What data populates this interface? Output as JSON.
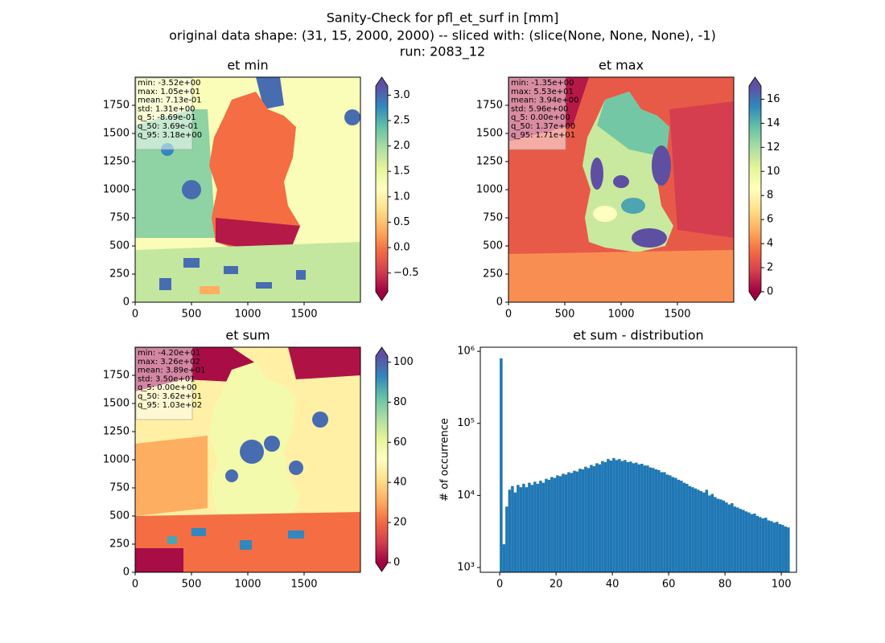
{
  "title": [
    "Sanity-Check for pfl_et_surf in [mm]",
    "original data shape: (31, 15, 2000, 2000) -- sliced with: (slice(None, None, None), -1)",
    "run: 2083_12"
  ],
  "chart_data": [
    {
      "type": "heatmap",
      "title": "et min",
      "cmap": "Spectral",
      "xlim": [
        0,
        2000
      ],
      "ylim": [
        0,
        2000
      ],
      "xticks": [
        0,
        500,
        1000,
        1500
      ],
      "yticks": [
        0,
        250,
        500,
        750,
        1000,
        1250,
        1500,
        1750
      ],
      "clim": [
        -0.869,
        3.18
      ],
      "cticks": [
        {
          "value": -0.5,
          "label": "−0.5"
        },
        {
          "value": 0,
          "label": "0.0"
        },
        {
          "value": 0.5,
          "label": "0.5"
        },
        {
          "value": 1,
          "label": "1.0"
        },
        {
          "value": 1.5,
          "label": "1.5"
        },
        {
          "value": 2,
          "label": "2.0"
        },
        {
          "value": 2.5,
          "label": "2.5"
        },
        {
          "value": 3,
          "label": "3.0"
        }
      ],
      "stats": [
        "min: -3.52e+00",
        "max: 1.05e+01",
        "mean: 7.13e-01",
        "std: 1.31e+00",
        "q_5: -8.69e-01",
        "q_50: 3.69e-01",
        "q_95: 3.18e+00"
      ]
    },
    {
      "type": "heatmap",
      "title": "et max",
      "cmap": "Spectral",
      "xlim": [
        0,
        2000
      ],
      "ylim": [
        0,
        2000
      ],
      "xticks": [
        0,
        500,
        1000,
        1500
      ],
      "yticks": [
        0,
        250,
        500,
        750,
        1000,
        1250,
        1500,
        1750
      ],
      "clim": [
        0,
        17.1
      ],
      "cticks": [
        0,
        2,
        4,
        6,
        8,
        10,
        12,
        14,
        16
      ],
      "stats": [
        "min: -1.35e+00",
        "max: 5.53e+01",
        "mean: 3.94e+00",
        "std: 5.96e+00",
        "q_5: 0.00e+00",
        "q_50: 1.37e+00",
        "q_95: 1.71e+01"
      ]
    },
    {
      "type": "heatmap",
      "title": "et sum",
      "cmap": "Spectral",
      "xlim": [
        0,
        2000
      ],
      "ylim": [
        0,
        2000
      ],
      "xticks": [
        0,
        500,
        1000,
        1500
      ],
      "yticks": [
        0,
        250,
        500,
        750,
        1000,
        1250,
        1500,
        1750
      ],
      "clim": [
        0,
        103
      ],
      "cticks": [
        0,
        20,
        40,
        60,
        80,
        100
      ],
      "stats": [
        "min: -4.20e+01",
        "max: 3.26e+02",
        "mean: 3.89e+01",
        "std: 3.50e+01",
        "q_5: 0.00e+00",
        "q_50: 3.62e+01",
        "q_95: 1.03e+02"
      ]
    },
    {
      "type": "histogram",
      "title": "et sum - distribution",
      "ylabel": "# of occurrence",
      "color": "#1f77b4",
      "log": true,
      "xlim": [
        -6.9,
        105.4
      ],
      "ylim": [
        858,
        1140000
      ],
      "xticks": [
        0,
        20,
        40,
        60,
        80,
        100
      ],
      "yticks": [
        {
          "value": 1000,
          "label": "10³"
        },
        {
          "value": 10000,
          "label": "10⁴"
        },
        {
          "value": 100000,
          "label": "10⁵"
        },
        {
          "value": 1000000,
          "label": "10⁶"
        }
      ],
      "bins": [
        0,
        1,
        2,
        3,
        4,
        5,
        6,
        7,
        8,
        9,
        10,
        11,
        12,
        13,
        14,
        15,
        16,
        17,
        18,
        19,
        20,
        21,
        22,
        23,
        24,
        25,
        26,
        27,
        28,
        29,
        30,
        31,
        32,
        33,
        34,
        35,
        36,
        37,
        38,
        39,
        40,
        41,
        42,
        43,
        44,
        45,
        46,
        47,
        48,
        49,
        50,
        51,
        52,
        53,
        54,
        55,
        56,
        57,
        58,
        59,
        60,
        61,
        62,
        63,
        64,
        65,
        66,
        67,
        68,
        69,
        70,
        71,
        72,
        73,
        74,
        75,
        76,
        77,
        78,
        79,
        80,
        81,
        82,
        83,
        84,
        85,
        86,
        87,
        88,
        89,
        90,
        91,
        92,
        93,
        94,
        95,
        96,
        97,
        98,
        99,
        100,
        101,
        102,
        103
      ],
      "counts": [
        800000,
        2100,
        7000,
        12000,
        13500,
        11000,
        14000,
        13000,
        14500,
        13000,
        15000,
        14000,
        15500,
        14500,
        16000,
        15000,
        17000,
        16500,
        18000,
        17500,
        19000,
        18500,
        20000,
        19500,
        21000,
        20500,
        22000,
        21500,
        23500,
        23000,
        25000,
        24000,
        26500,
        25500,
        28000,
        27000,
        30000,
        29000,
        32000,
        30500,
        33000,
        31000,
        32000,
        30000,
        31000,
        29000,
        29500,
        28000,
        28500,
        27000,
        27500,
        26000,
        26000,
        24500,
        24000,
        23000,
        22500,
        21000,
        21000,
        19500,
        19000,
        18000,
        17500,
        16500,
        16000,
        15000,
        14500,
        13500,
        13000,
        12500,
        12000,
        11500,
        11000,
        12000,
        10000,
        10500,
        9500,
        9000,
        8800,
        8500,
        8000,
        7500,
        7800,
        7000,
        6800,
        6500,
        6300,
        6000,
        5800,
        5500,
        5600,
        5200,
        5000,
        4800,
        4900,
        4500,
        4400,
        4200,
        4300,
        4000,
        3900,
        3700,
        3600
      ]
    }
  ]
}
